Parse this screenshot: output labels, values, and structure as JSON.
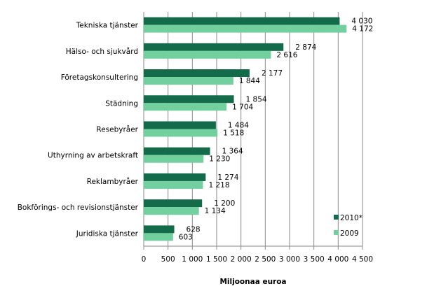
{
  "chart_data": {
    "type": "bar",
    "orientation": "horizontal",
    "categories": [
      "Tekniska tjänster",
      "Hälso- och sjukvård",
      "Företagskonsultering",
      "Städning",
      "Resebyråer",
      "Uthyrning av arbetskraft",
      "Reklambyråer",
      "Bokförings- och revisionstjänster",
      "Juridiska tjänster"
    ],
    "series": [
      {
        "name": "2010*",
        "color": "#146b4a",
        "values": [
          4030,
          2874,
          2177,
          1854,
          1484,
          1364,
          1274,
          1200,
          628
        ],
        "labels": [
          "4 030",
          "2 874",
          "2 177",
          "1 854",
          "1 484",
          "1 364",
          "1 274",
          "1 200",
          "628"
        ]
      },
      {
        "name": "2009",
        "color": "#72cf9e",
        "values": [
          4172,
          2616,
          1844,
          1704,
          1518,
          1230,
          1218,
          1134,
          603
        ],
        "labels": [
          "4 172",
          "2 616",
          "1 844",
          "1 704",
          "1 518",
          "1 230",
          "1 218",
          "1 134",
          "603"
        ]
      }
    ],
    "xlabel": "Miljoonaa euroa",
    "xlim": [
      0,
      4500
    ],
    "xticks": [
      0,
      500,
      1000,
      1500,
      2000,
      2500,
      3000,
      3500,
      4000,
      4500
    ],
    "xtick_labels": [
      "0",
      "500",
      "1 000",
      "1 500",
      "2 000",
      "2 500",
      "3 000",
      "3 500",
      "4 000",
      "4 500"
    ],
    "grid": "vertical",
    "legend_position": "bottom-right"
  }
}
